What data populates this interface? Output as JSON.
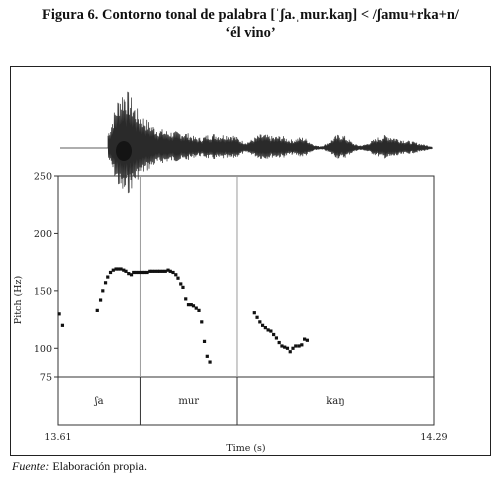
{
  "figure": {
    "title_line1": "Figura 6. Contorno tonal de palabra [ˈʃa.ˌmur.kaŋ] < /ʃamu+rka+n/",
    "title_line2": "‘él vino’",
    "source_label": "Fuente:",
    "source_text": " Elaboración propia."
  },
  "chart_data": {
    "type": "scatter",
    "title": "",
    "xlabel": "Time (s)",
    "ylabel": "Pitch (Hz)",
    "xlim": [
      13.61,
      14.29
    ],
    "ylim": [
      75,
      250
    ],
    "x_tick_labels": [
      "13.61",
      "14.29"
    ],
    "y_ticks": [
      250,
      200,
      150,
      100,
      75
    ],
    "grid": false,
    "syllables": [
      {
        "label": "ʃa",
        "start": 13.61,
        "end": 13.7591
      },
      {
        "label": "mur",
        "start": 13.7591,
        "end": 13.9337
      },
      {
        "label": "kaŋ",
        "start": 13.9337,
        "end": 14.29
      }
    ],
    "series": [
      {
        "values": [
          {
            "x": 13.612,
            "y": 130
          },
          {
            "x": 13.618,
            "y": 120
          },
          {
            "x": 13.681,
            "y": 133
          },
          {
            "x": 13.687,
            "y": 142
          },
          {
            "x": 13.691,
            "y": 150
          },
          {
            "x": 13.696,
            "y": 157
          },
          {
            "x": 13.7,
            "y": 162
          },
          {
            "x": 13.705,
            "y": 166
          },
          {
            "x": 13.71,
            "y": 168
          },
          {
            "x": 13.715,
            "y": 169
          },
          {
            "x": 13.719,
            "y": 169
          },
          {
            "x": 13.724,
            "y": 169
          },
          {
            "x": 13.729,
            "y": 168
          },
          {
            "x": 13.733,
            "y": 167
          },
          {
            "x": 13.738,
            "y": 165
          },
          {
            "x": 13.743,
            "y": 164
          },
          {
            "x": 13.747,
            "y": 166
          },
          {
            "x": 13.752,
            "y": 166
          },
          {
            "x": 13.757,
            "y": 166
          },
          {
            "x": 13.762,
            "y": 166
          },
          {
            "x": 13.766,
            "y": 166
          },
          {
            "x": 13.771,
            "y": 166
          },
          {
            "x": 13.776,
            "y": 167
          },
          {
            "x": 13.78,
            "y": 167
          },
          {
            "x": 13.785,
            "y": 167
          },
          {
            "x": 13.79,
            "y": 167
          },
          {
            "x": 13.794,
            "y": 167
          },
          {
            "x": 13.799,
            "y": 167
          },
          {
            "x": 13.804,
            "y": 167
          },
          {
            "x": 13.809,
            "y": 168
          },
          {
            "x": 13.813,
            "y": 167
          },
          {
            "x": 13.818,
            "y": 166
          },
          {
            "x": 13.823,
            "y": 164
          },
          {
            "x": 13.827,
            "y": 161
          },
          {
            "x": 13.832,
            "y": 156
          },
          {
            "x": 13.836,
            "y": 153
          },
          {
            "x": 13.841,
            "y": 143
          },
          {
            "x": 13.846,
            "y": 138
          },
          {
            "x": 13.851,
            "y": 138
          },
          {
            "x": 13.855,
            "y": 137
          },
          {
            "x": 13.86,
            "y": 135
          },
          {
            "x": 13.865,
            "y": 133
          },
          {
            "x": 13.87,
            "y": 123
          },
          {
            "x": 13.875,
            "y": 106
          },
          {
            "x": 13.88,
            "y": 93
          },
          {
            "x": 13.885,
            "y": 88
          },
          {
            "x": 13.965,
            "y": 131
          },
          {
            "x": 13.97,
            "y": 127
          },
          {
            "x": 13.975,
            "y": 123
          },
          {
            "x": 13.98,
            "y": 120
          },
          {
            "x": 13.985,
            "y": 118
          },
          {
            "x": 13.99,
            "y": 116
          },
          {
            "x": 13.995,
            "y": 115
          },
          {
            "x": 14.0,
            "y": 112
          },
          {
            "x": 14.005,
            "y": 109
          },
          {
            "x": 14.01,
            "y": 105
          },
          {
            "x": 14.015,
            "y": 102
          },
          {
            "x": 14.02,
            "y": 101
          },
          {
            "x": 14.025,
            "y": 100
          },
          {
            "x": 14.03,
            "y": 97
          },
          {
            "x": 14.035,
            "y": 100
          },
          {
            "x": 14.04,
            "y": 102
          },
          {
            "x": 14.046,
            "y": 102
          },
          {
            "x": 14.051,
            "y": 103
          },
          {
            "x": 14.056,
            "y": 108
          },
          {
            "x": 14.061,
            "y": 107
          }
        ]
      }
    ],
    "colors": {
      "points": "#111111",
      "waveform": "#2a2a2a",
      "axes": "#333333",
      "divider": "#9a9a9a"
    }
  }
}
